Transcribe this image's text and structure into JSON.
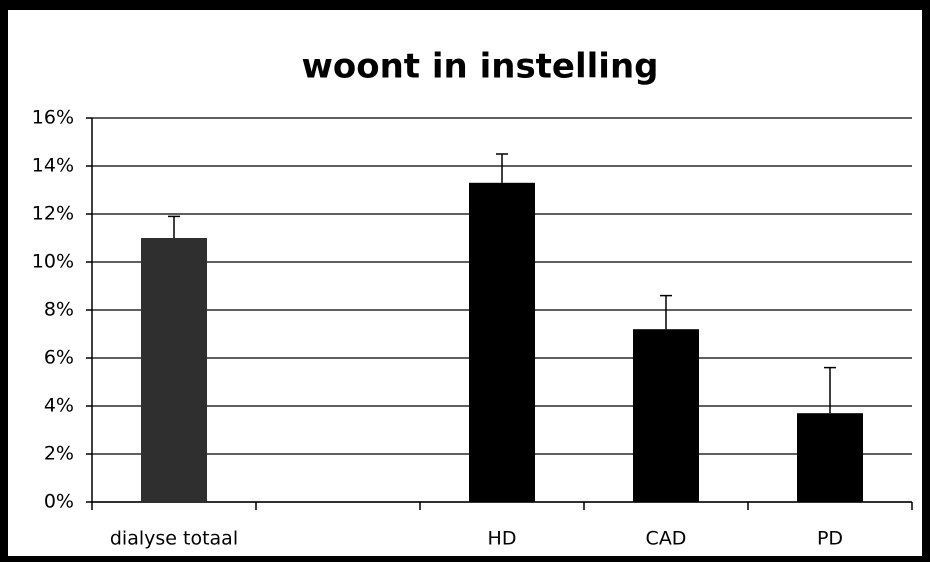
{
  "chart_data": {
    "type": "bar",
    "title": "woont in instelling",
    "categories": [
      "dialyse totaal",
      null,
      "HD",
      "CAD",
      "PD"
    ],
    "values": [
      11,
      null,
      13.3,
      7.2,
      3.7
    ],
    "errors": [
      0.9,
      null,
      1.2,
      1.4,
      1.9
    ],
    "colors": [
      "#2f2f2f",
      null,
      "#000000",
      "#000000",
      "#000000"
    ],
    "ylim": [
      0,
      16
    ],
    "yticks": [
      {
        "value": 0,
        "label": "0%"
      },
      {
        "value": 2,
        "label": "2%"
      },
      {
        "value": 4,
        "label": "4%"
      },
      {
        "value": 6,
        "label": "6%"
      },
      {
        "value": 8,
        "label": "8%"
      },
      {
        "value": 10,
        "label": "10%"
      },
      {
        "value": 12,
        "label": "12%"
      },
      {
        "value": 14,
        "label": "14%"
      },
      {
        "value": 16,
        "label": "16%"
      }
    ],
    "grid": true
  }
}
